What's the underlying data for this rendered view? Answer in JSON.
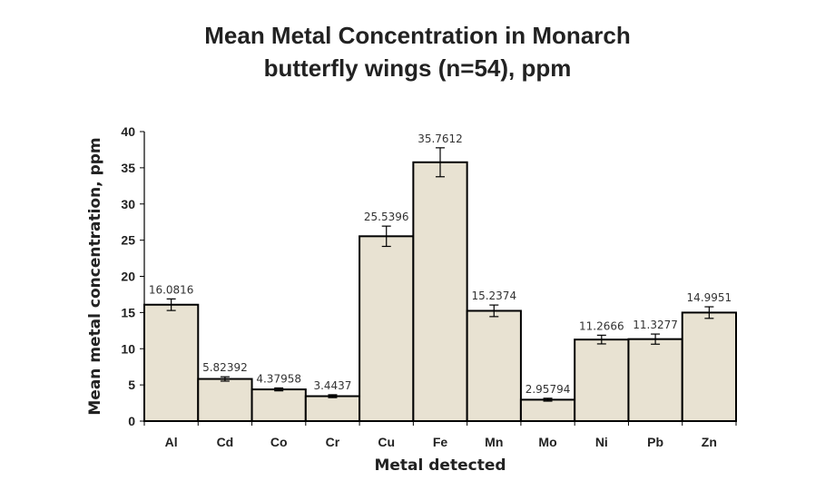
{
  "chart_data": {
    "type": "bar",
    "title_line1": "Mean Metal Concentration in Monarch",
    "title_line2": "butterfly wings (n=54), ppm",
    "xlabel": "Metal detected",
    "ylabel": "Mean metal concentration, ppm",
    "ylim": [
      0,
      40
    ],
    "yticks": [
      0,
      5,
      10,
      15,
      20,
      25,
      30,
      35,
      40
    ],
    "grid": false,
    "legend": "none",
    "categories": [
      "Al",
      "Cd",
      "Co",
      "Cr",
      "Cu",
      "Fe",
      "Mn",
      "Mo",
      "Ni",
      "Pb",
      "Zn"
    ],
    "values": [
      16.0816,
      5.82392,
      4.37958,
      3.4437,
      25.5396,
      35.7612,
      15.2374,
      2.95794,
      11.2666,
      11.3277,
      14.9951
    ],
    "value_labels": [
      "16.0816",
      "5.82392",
      "4.37958",
      "3.4437",
      "25.5396",
      "35.7612",
      "15.2374",
      "2.95794",
      "11.2666",
      "11.3277",
      "14.9951"
    ],
    "error": [
      0.8,
      0.3,
      0.2,
      0.2,
      1.4,
      2.0,
      0.8,
      0.2,
      0.6,
      0.7,
      0.8
    ],
    "bar_color": "#e8e2d2",
    "bar_edge_color": "#000000"
  }
}
